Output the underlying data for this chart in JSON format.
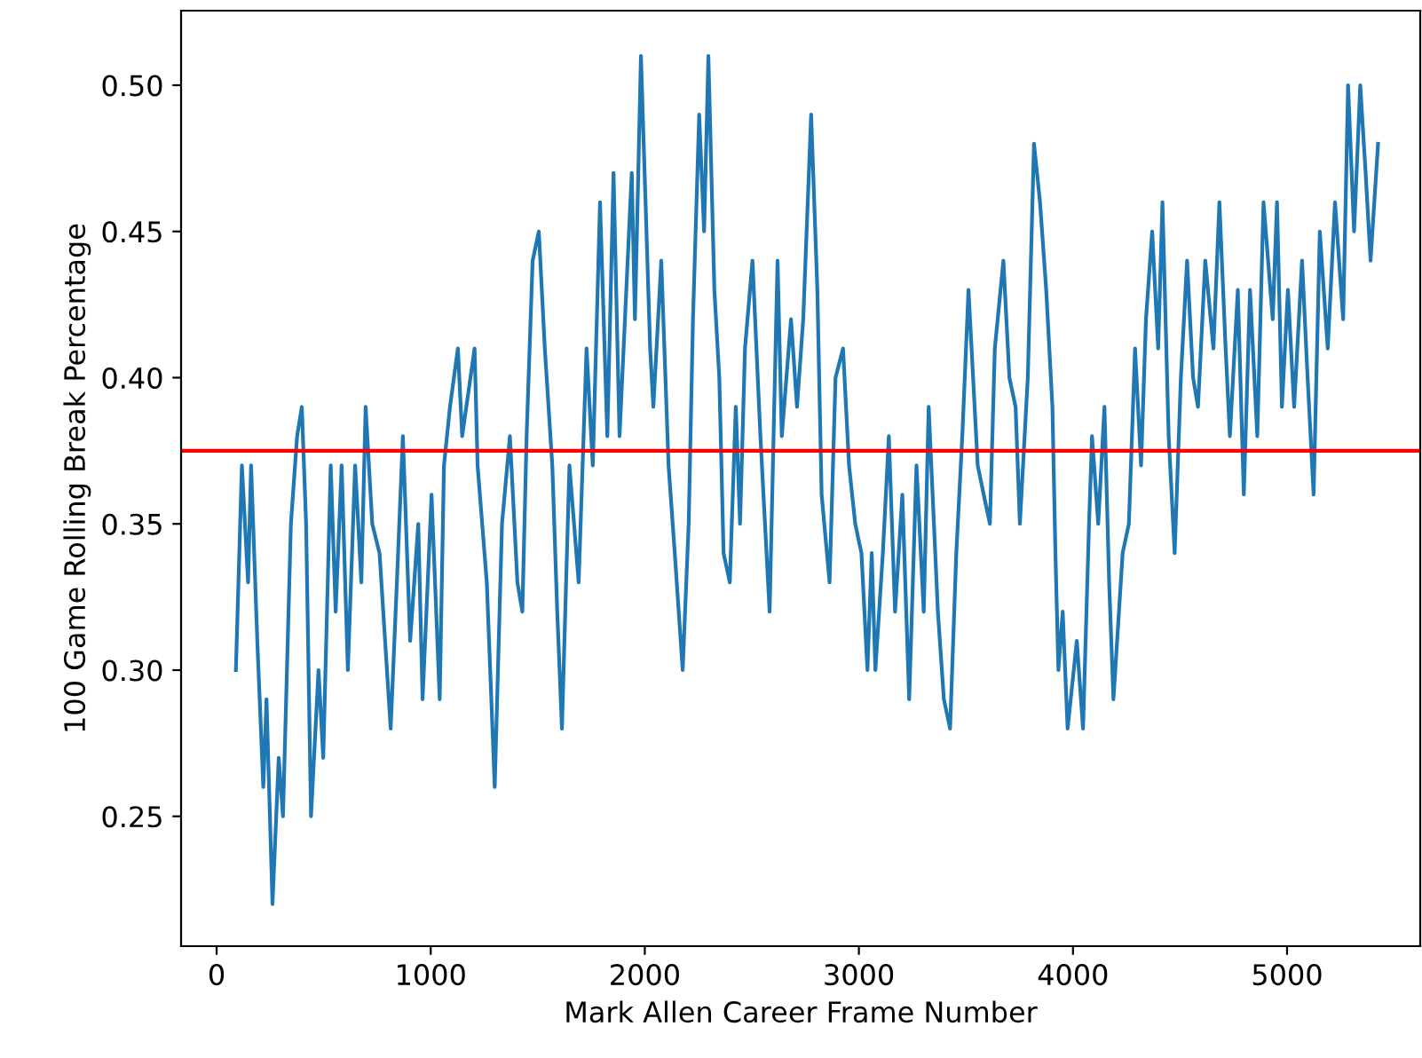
{
  "chart_data": {
    "type": "line",
    "xlabel": "Mark Allen Career Frame Number",
    "ylabel": "100 Game Rolling Break Percentage",
    "xlim": [
      -166,
      5622
    ],
    "ylim": [
      0.2056,
      0.5255
    ],
    "xticks": [
      0,
      1000,
      2000,
      3000,
      4000,
      5000
    ],
    "yticks": [
      {
        "value": 0.25,
        "label": "0.25"
      },
      {
        "value": 0.3,
        "label": "0.30"
      },
      {
        "value": 0.35,
        "label": "0.35"
      },
      {
        "value": 0.4,
        "label": "0.40"
      },
      {
        "value": 0.45,
        "label": "0.45"
      },
      {
        "value": 0.5,
        "label": "0.50"
      }
    ],
    "grid": false,
    "legend": false,
    "line_style": "solid",
    "marker": "none",
    "ref_lines": [
      {
        "axis": "y",
        "value": 0.375,
        "color": "#ff0000",
        "line_style": "solid"
      }
    ],
    "series": [
      {
        "color": "#1f77b4",
        "x": [
          90,
          118,
          147,
          161,
          190,
          218,
          233,
          261,
          290,
          310,
          347,
          376,
          398,
          418,
          441,
          476,
          498,
          533,
          556,
          584,
          613,
          647,
          676,
          696,
          727,
          761,
          813,
          842,
          870,
          904,
          942,
          962,
          1004,
          1042,
          1062,
          1090,
          1127,
          1147,
          1205,
          1219,
          1262,
          1299,
          1333,
          1370,
          1405,
          1428,
          1448,
          1476,
          1505,
          1533,
          1568,
          1591,
          1613,
          1648,
          1691,
          1728,
          1757,
          1791,
          1825,
          1854,
          1882,
          1939,
          1954,
          1982,
          2025,
          2040,
          2077,
          2111,
          2140,
          2177,
          2205,
          2225,
          2254,
          2277,
          2297,
          2325,
          2348,
          2368,
          2397,
          2425,
          2445,
          2468,
          2503,
          2540,
          2583,
          2620,
          2640,
          2683,
          2711,
          2740,
          2777,
          2806,
          2826,
          2863,
          2891,
          2926,
          2954,
          2983,
          3012,
          3040,
          3060,
          3077,
          3112,
          3140,
          3169,
          3203,
          3235,
          3269,
          3303,
          3326,
          3369,
          3397,
          3426,
          3455,
          3483,
          3512,
          3555,
          3583,
          3612,
          3635,
          3675,
          3703,
          3732,
          3752,
          3789,
          3818,
          3846,
          3875,
          3904,
          3918,
          3932,
          3952,
          3975,
          4018,
          4047,
          4075,
          4089,
          4118,
          4147,
          4169,
          4189,
          4232,
          4261,
          4290,
          4318,
          4341,
          4370,
          4398,
          4418,
          4447,
          4475,
          4504,
          4533,
          4561,
          4584,
          4618,
          4656,
          4684,
          4713,
          4733,
          4770,
          4798,
          4827,
          4861,
          4890,
          4933,
          4953,
          4976,
          5004,
          5033,
          5070,
          5096,
          5124,
          5153,
          5190,
          5224,
          5262,
          5285,
          5313,
          5342,
          5367,
          5390,
          5425
        ],
        "values": [
          0.3,
          0.37,
          0.33,
          0.37,
          0.31,
          0.26,
          0.29,
          0.22,
          0.27,
          0.25,
          0.35,
          0.38,
          0.39,
          0.35,
          0.25,
          0.3,
          0.27,
          0.37,
          0.32,
          0.37,
          0.3,
          0.37,
          0.33,
          0.39,
          0.35,
          0.34,
          0.28,
          0.33,
          0.38,
          0.31,
          0.35,
          0.29,
          0.36,
          0.29,
          0.37,
          0.39,
          0.41,
          0.38,
          0.41,
          0.37,
          0.33,
          0.26,
          0.35,
          0.38,
          0.33,
          0.32,
          0.38,
          0.44,
          0.45,
          0.41,
          0.37,
          0.32,
          0.28,
          0.37,
          0.33,
          0.41,
          0.37,
          0.46,
          0.38,
          0.47,
          0.38,
          0.47,
          0.42,
          0.51,
          0.41,
          0.39,
          0.44,
          0.37,
          0.34,
          0.3,
          0.35,
          0.42,
          0.49,
          0.45,
          0.51,
          0.43,
          0.4,
          0.34,
          0.33,
          0.39,
          0.35,
          0.41,
          0.44,
          0.38,
          0.32,
          0.44,
          0.38,
          0.42,
          0.39,
          0.42,
          0.49,
          0.43,
          0.36,
          0.33,
          0.4,
          0.41,
          0.37,
          0.35,
          0.34,
          0.3,
          0.34,
          0.3,
          0.34,
          0.38,
          0.32,
          0.36,
          0.29,
          0.37,
          0.32,
          0.39,
          0.32,
          0.29,
          0.28,
          0.34,
          0.38,
          0.43,
          0.37,
          0.36,
          0.35,
          0.41,
          0.44,
          0.4,
          0.39,
          0.35,
          0.4,
          0.48,
          0.46,
          0.43,
          0.39,
          0.34,
          0.3,
          0.32,
          0.28,
          0.31,
          0.28,
          0.35,
          0.38,
          0.35,
          0.39,
          0.33,
          0.29,
          0.34,
          0.35,
          0.41,
          0.37,
          0.42,
          0.45,
          0.41,
          0.46,
          0.38,
          0.34,
          0.4,
          0.44,
          0.4,
          0.39,
          0.44,
          0.41,
          0.46,
          0.41,
          0.38,
          0.43,
          0.36,
          0.43,
          0.38,
          0.46,
          0.42,
          0.46,
          0.39,
          0.43,
          0.39,
          0.44,
          0.4,
          0.36,
          0.45,
          0.41,
          0.46,
          0.42,
          0.5,
          0.45,
          0.5,
          0.47,
          0.44,
          0.48
        ]
      }
    ]
  }
}
